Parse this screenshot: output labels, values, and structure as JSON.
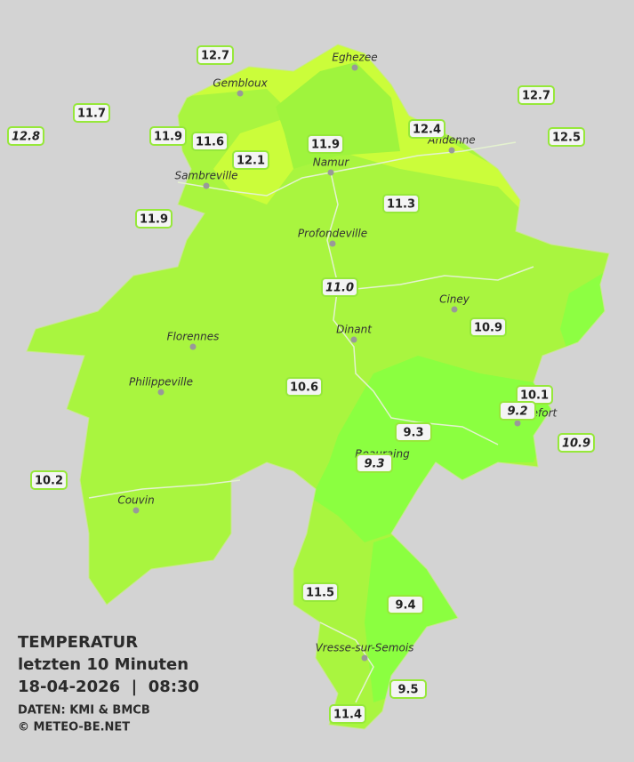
{
  "title": "TEMPERATUR",
  "subtitle": "letzten 10 Minuten",
  "datetime": "18-04-2026  |  08:30",
  "source": "DATEN: KMI & BMCB",
  "copyright": "© METEO-BE.NET",
  "cities": [
    "Eghezee",
    "Gembloux",
    "Namur",
    "Andenne",
    "Sambreville",
    "Profondeville",
    "Ciney",
    "Florennes",
    "Dinant",
    "Philippeville",
    "Rochefort",
    "Beauraing",
    "Couvin",
    "Vresse-sur-Semois"
  ],
  "stations": [
    "12.7",
    "12.7",
    "11.7",
    "12.8",
    "11.9",
    "11.6",
    "12.1",
    "11.9",
    "12.4",
    "12.5",
    "11.3",
    "11.9",
    "11.0",
    "10.9",
    "10.6",
    "10.1",
    "9.2",
    "9.3",
    "9.3",
    "10.9",
    "10.2",
    "11.5",
    "9.4",
    "9.5",
    "11.4"
  ]
}
